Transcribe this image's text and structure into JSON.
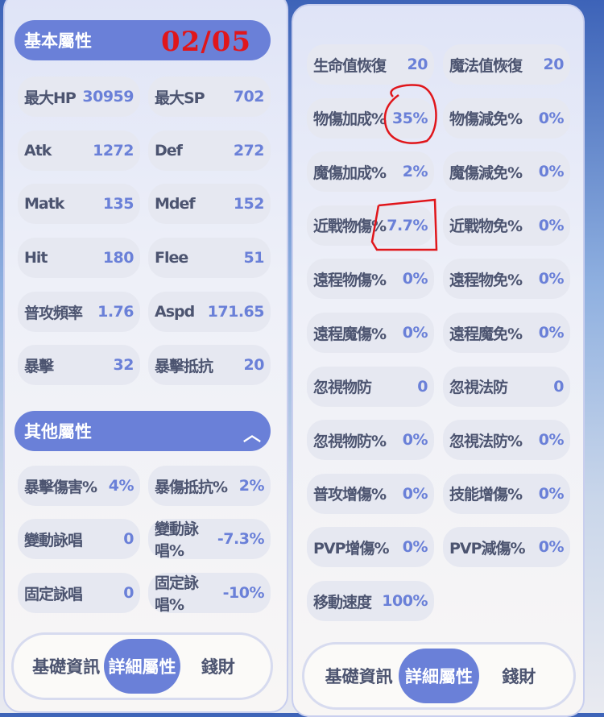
{
  "left": {
    "basic_header": "基本屬性",
    "annotation": "02/05",
    "basic": [
      {
        "label": "最大HP",
        "value": "30959"
      },
      {
        "label": "最大SP",
        "value": "702"
      },
      {
        "label": "Atk",
        "value": "1272"
      },
      {
        "label": "Def",
        "value": "272"
      },
      {
        "label": "Matk",
        "value": "135"
      },
      {
        "label": "Mdef",
        "value": "152"
      },
      {
        "label": "Hit",
        "value": "180"
      },
      {
        "label": "Flee",
        "value": "51"
      },
      {
        "label": "普攻頻率",
        "value": "1.76"
      },
      {
        "label": "Aspd",
        "value": "171.65"
      },
      {
        "label": "暴擊",
        "value": "32"
      },
      {
        "label": "暴擊抵抗",
        "value": "20"
      }
    ],
    "other_header": "其他屬性",
    "other_icon": "chevron-up-icon",
    "other": [
      {
        "label": "暴擊傷害%",
        "value": "4%"
      },
      {
        "label": "暴傷抵抗%",
        "value": "2%"
      },
      {
        "label": "變動詠唱",
        "value": "0"
      },
      {
        "label": "變動詠唱%",
        "value": "-7.3%"
      },
      {
        "label": "固定詠唱",
        "value": "0"
      },
      {
        "label": "固定詠唱%",
        "value": "-10%"
      }
    ],
    "tabs": [
      "基礎資訊",
      "詳細屬性",
      "錢財"
    ],
    "active_tab": 1
  },
  "right": {
    "stats": [
      {
        "label": "生命值恢復",
        "value": "20"
      },
      {
        "label": "魔法值恢復",
        "value": "20"
      },
      {
        "label": "物傷加成%",
        "value": "35%"
      },
      {
        "label": "物傷減免%",
        "value": "0%"
      },
      {
        "label": "魔傷加成%",
        "value": "2%"
      },
      {
        "label": "魔傷減免%",
        "value": "0%"
      },
      {
        "label": "近戰物傷%",
        "value": "7.7%"
      },
      {
        "label": "近戰物免%",
        "value": "0%"
      },
      {
        "label": "遠程物傷%",
        "value": "0%"
      },
      {
        "label": "遠程物免%",
        "value": "0%"
      },
      {
        "label": "遠程魔傷%",
        "value": "0%"
      },
      {
        "label": "遠程魔免%",
        "value": "0%"
      },
      {
        "label": "忽視物防",
        "value": "0"
      },
      {
        "label": "忽視法防",
        "value": "0"
      },
      {
        "label": "忽視物防%",
        "value": "0%"
      },
      {
        "label": "忽視法防%",
        "value": "0%"
      },
      {
        "label": "普攻增傷%",
        "value": "0%"
      },
      {
        "label": "技能增傷%",
        "value": "0%"
      },
      {
        "label": "PVP增傷%",
        "value": "0%"
      },
      {
        "label": "PVP減傷%",
        "value": "0%"
      },
      {
        "label": "移動速度",
        "value": "100%"
      }
    ],
    "tabs": [
      "基礎資訊",
      "詳細屬性",
      "錢財"
    ],
    "active_tab": 1
  },
  "colors": {
    "accent": "#6a80d8",
    "label": "#4c5470",
    "annotation": "#e0161b"
  }
}
